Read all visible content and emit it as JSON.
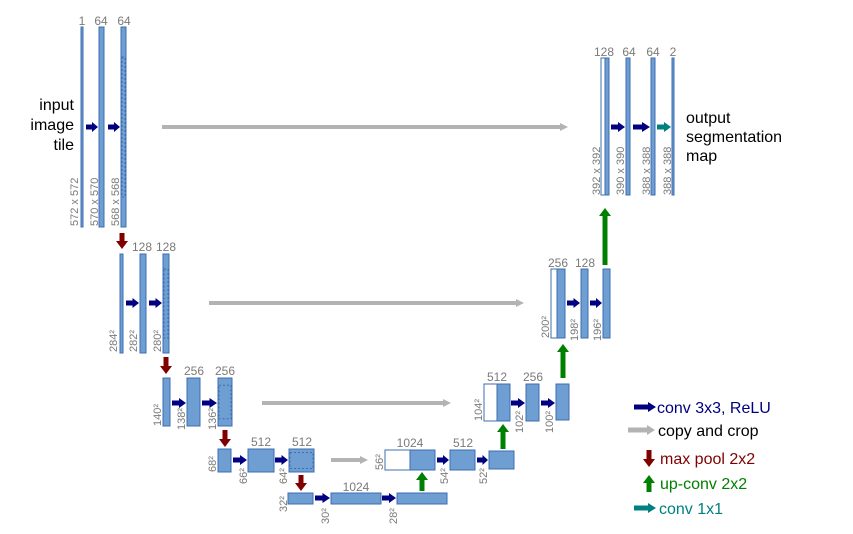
{
  "input_label": [
    "input",
    "image",
    "tile"
  ],
  "output_label": [
    "output",
    "segmentation",
    "map"
  ],
  "colors": {
    "feature_map_fill": "#6f9fd2",
    "feature_map_stroke": "#3d6eb0",
    "conv": "#000080",
    "copy": "#b3b3b3",
    "maxpool": "#800000",
    "upconv": "#008000",
    "conv1x1": "#008080"
  },
  "levels": {
    "enc1": {
      "channels": [
        "1",
        "64",
        "64"
      ],
      "sizes": [
        "572 x 572",
        "570 x 570",
        "568 x 568"
      ]
    },
    "enc2": {
      "channels": [
        "128",
        "128"
      ],
      "sizes": [
        "284²",
        "282²",
        "280²"
      ]
    },
    "enc3": {
      "channels": [
        "256",
        "256"
      ],
      "sizes": [
        "140²",
        "138²",
        "136²"
      ]
    },
    "enc4": {
      "channels": [
        "512",
        "512"
      ],
      "sizes": [
        "68²",
        "66²",
        "64²"
      ]
    },
    "bottom": {
      "channels": [
        "1024"
      ],
      "sizes": [
        "32²",
        "30²",
        "28²"
      ]
    },
    "dec4": {
      "channels": [
        "1024",
        "512"
      ],
      "sizes": [
        "56²",
        "54²",
        "52²"
      ]
    },
    "dec3": {
      "channels": [
        "512",
        "256"
      ],
      "sizes": [
        "104²",
        "102²",
        "100²"
      ]
    },
    "dec2": {
      "channels": [
        "256",
        "128"
      ],
      "sizes": [
        "200²",
        "198²",
        "196²"
      ]
    },
    "dec1": {
      "channels": [
        "128",
        "64",
        "64",
        "2"
      ],
      "sizes": [
        "392 x 392",
        "390 x 390",
        "388 x 388",
        "388 x 388"
      ]
    }
  },
  "legend": [
    {
      "label": "conv 3x3, ReLU",
      "icon": "arrow-right-icon",
      "color": "#000080"
    },
    {
      "label": "copy and crop",
      "icon": "arrow-right-icon",
      "color": "#b3b3b3"
    },
    {
      "label": "max pool 2x2",
      "icon": "arrow-down-icon",
      "color": "#800000"
    },
    {
      "label": "up-conv 2x2",
      "icon": "arrow-up-icon",
      "color": "#008000"
    },
    {
      "label": "conv 1x1",
      "icon": "arrow-right-icon",
      "color": "#008080"
    }
  ]
}
